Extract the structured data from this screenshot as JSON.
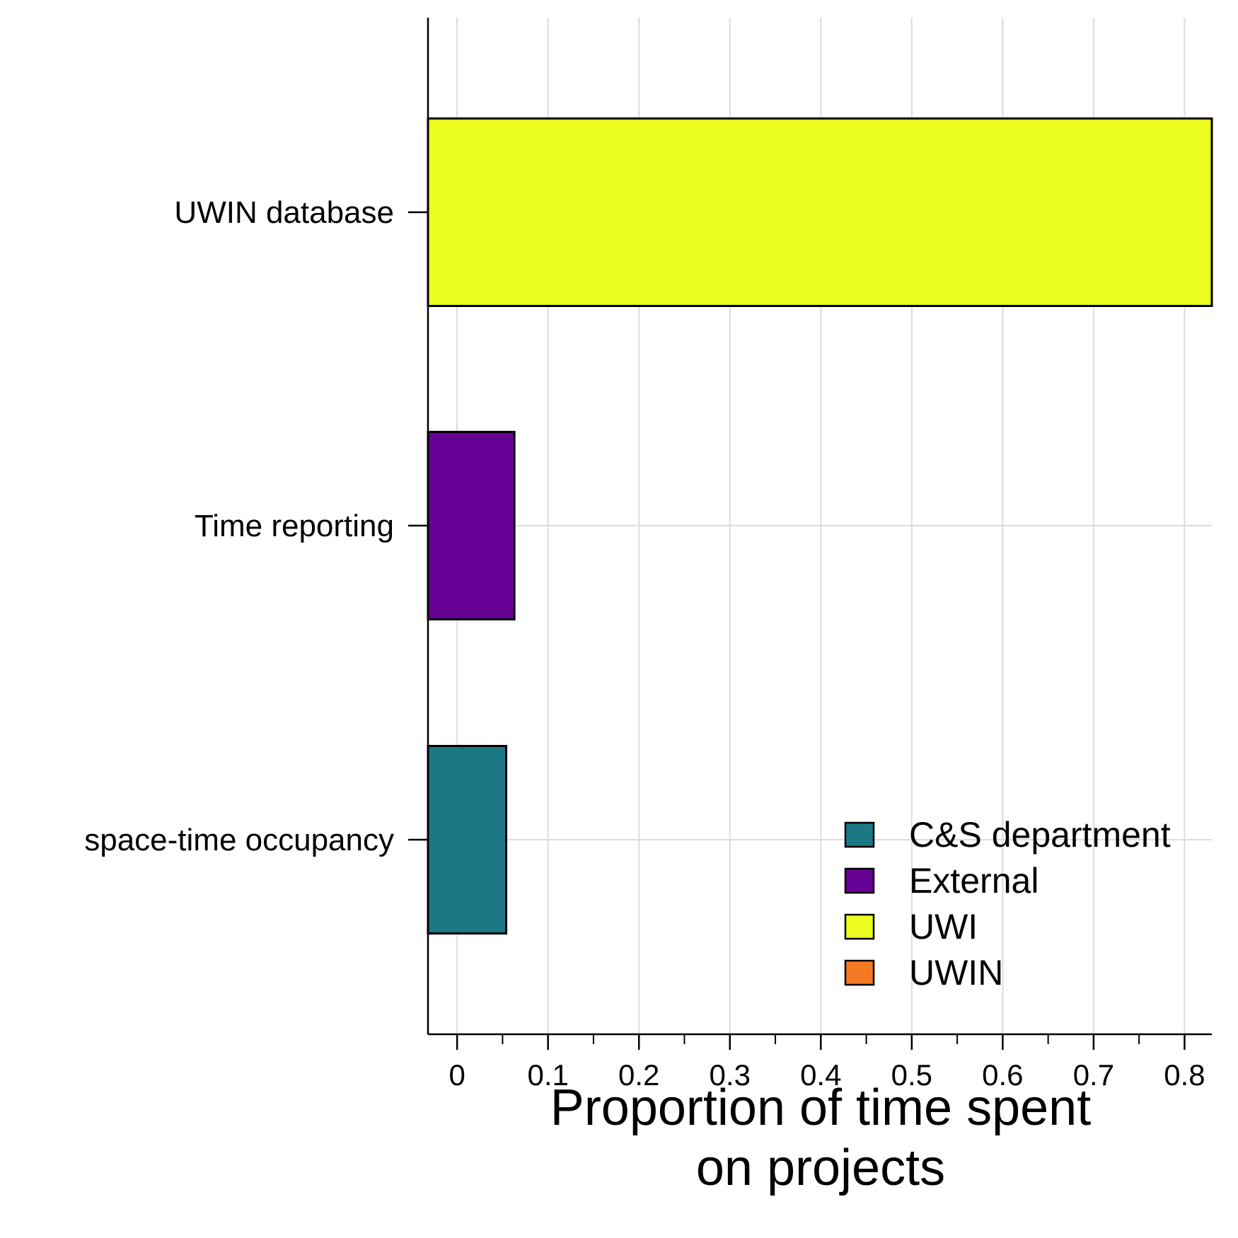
{
  "chart_data": {
    "type": "bar",
    "orientation": "horizontal",
    "categories": [
      "UWIN database",
      "Time reporting",
      "space-time occupancy"
    ],
    "values": [
      0.87,
      0.063,
      0.054
    ],
    "groups": [
      "UWI",
      "External",
      "C&S department"
    ],
    "xlabel_lines": [
      "Proportion of time spent",
      "on projects"
    ],
    "xlim": [
      -0.032,
      0.83
    ],
    "xticks": [
      0,
      0.1,
      0.2,
      0.3,
      0.4,
      0.5,
      0.6,
      0.7,
      0.8
    ],
    "xtick_labels": [
      "0",
      "0.1",
      "0.2",
      "0.3",
      "0.4",
      "0.5",
      "0.6",
      "0.7",
      "0.8"
    ],
    "minor_xticks": [
      0.05,
      0.15,
      0.25,
      0.35,
      0.45,
      0.55,
      0.65,
      0.75
    ],
    "grid": true,
    "legend": {
      "placement": "bottom-right",
      "entries": [
        {
          "label": "C&S department",
          "color": "#1d7886"
        },
        {
          "label": "External",
          "color": "#670094"
        },
        {
          "label": "UWI",
          "color": "#ebfc21"
        },
        {
          "label": "UWIN",
          "color": "#f47a23"
        }
      ]
    }
  }
}
